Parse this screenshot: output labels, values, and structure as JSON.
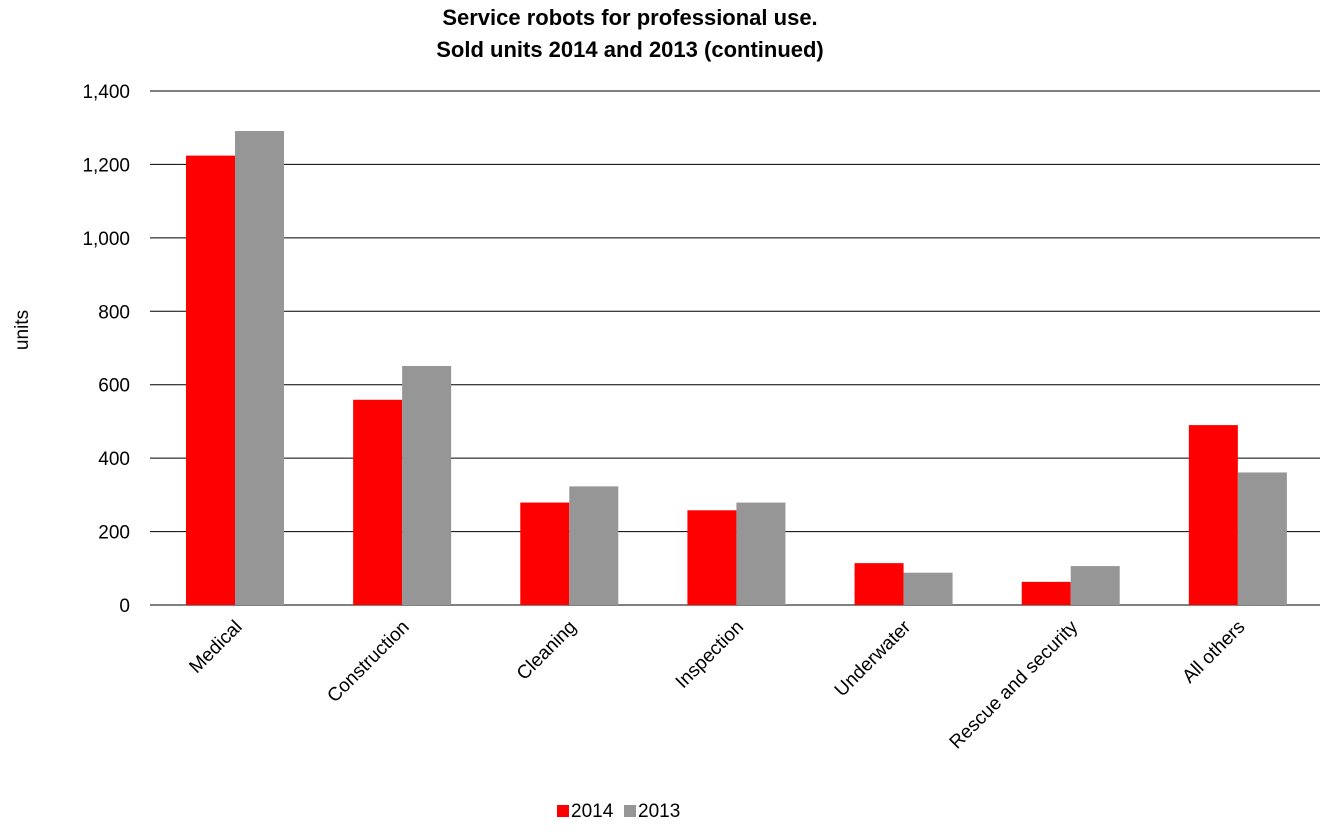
{
  "chart_data": {
    "type": "bar",
    "title": [
      "Service robots for professional use.",
      "Sold units 2014 and 2013 (continued)"
    ],
    "xlabel": "",
    "ylabel": "units",
    "ylim": [
      0,
      1400
    ],
    "yticks": [
      0,
      200,
      400,
      600,
      800,
      1000,
      1200,
      1400
    ],
    "ytick_labels": [
      "0",
      "200",
      "400",
      "600",
      "800",
      "1,000",
      "1,200",
      "1,400"
    ],
    "categories": [
      "Medical",
      "Construction",
      "Cleaning",
      "Inspection",
      "Underwater",
      "Rescue and security",
      "All others"
    ],
    "series": [
      {
        "name": "2014",
        "color": "#ff0000",
        "values": [
          1224,
          559,
          279,
          258,
          114,
          63,
          490
        ]
      },
      {
        "name": "2013",
        "color": "#969696",
        "values": [
          1291,
          651,
          323,
          279,
          88,
          106,
          361
        ]
      }
    ],
    "grid": true,
    "legend_position": "bottom-center"
  }
}
